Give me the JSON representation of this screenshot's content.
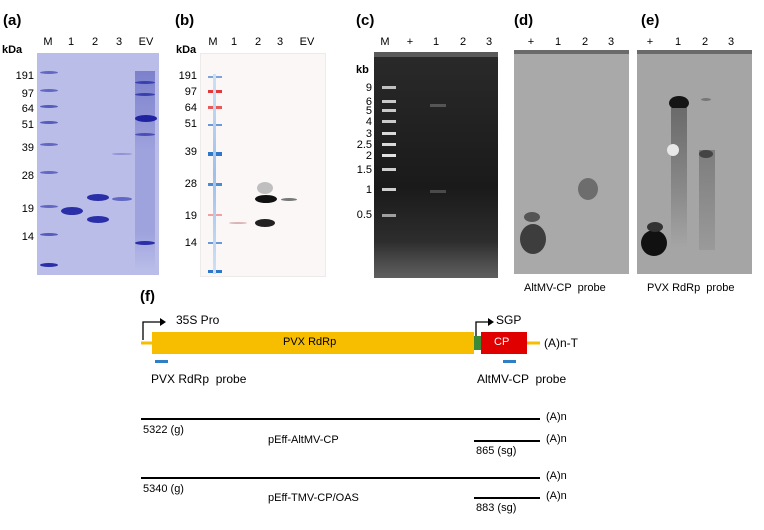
{
  "panels": {
    "a": {
      "label": "(a)",
      "unit": "kDa",
      "lanes": [
        "M",
        "1",
        "2",
        "3",
        "EV"
      ],
      "markers": [
        "191",
        "97",
        "64",
        "51",
        "39",
        "28",
        "19",
        "14"
      ]
    },
    "b": {
      "label": "(b)",
      "unit": "kDa",
      "lanes": [
        "M",
        "1",
        "2",
        "3",
        "EV"
      ],
      "markers": [
        "191",
        "97",
        "64",
        "51",
        "39",
        "28",
        "19",
        "14"
      ]
    },
    "c": {
      "label": "(c)",
      "unit": "kb",
      "lanes": [
        "M",
        "+",
        "1",
        "2",
        "3"
      ],
      "markers": [
        "9",
        "6",
        "5",
        "4",
        "3",
        "2.5",
        "2",
        "1.5",
        "1",
        "0.5"
      ]
    },
    "d": {
      "label": "(d)",
      "lanes": [
        "+",
        "1",
        "2",
        "3"
      ],
      "caption": "AltMV-CP  probe"
    },
    "e": {
      "label": "(e)",
      "lanes": [
        "+",
        "1",
        "2",
        "3"
      ],
      "caption": "PVX RdRp  probe"
    },
    "f": {
      "label": "(f)",
      "promoter": "35S Pro",
      "sgp": "SGP",
      "rdrp": "PVX RdRp",
      "cp": "CP",
      "polya_t": "(A)n-T",
      "probe1": "PVX RdRp  probe",
      "probe2": "AltMV-CP  probe",
      "polya": "(A)n",
      "construct1": {
        "name": "pEff-AltMV-CP",
        "genomic": "5322 (g)",
        "subgenomic": "865 (sg)"
      },
      "construct2": {
        "name": "pEff-TMV-CP/OAS",
        "genomic": "5340 (g)",
        "subgenomic": "883 (sg)"
      }
    }
  },
  "colors": {
    "coomassie_bg": "#b9bde8",
    "coomassie_band": "#2a2fa8",
    "gel_bg": "#1c1c1c",
    "blot_bg": "#a7a7a7",
    "rdrp_box": "#f7be00",
    "cp_box": "#e00000",
    "probe_bar": "#2f7fc6",
    "sgp_green": "#3a8a3a"
  }
}
